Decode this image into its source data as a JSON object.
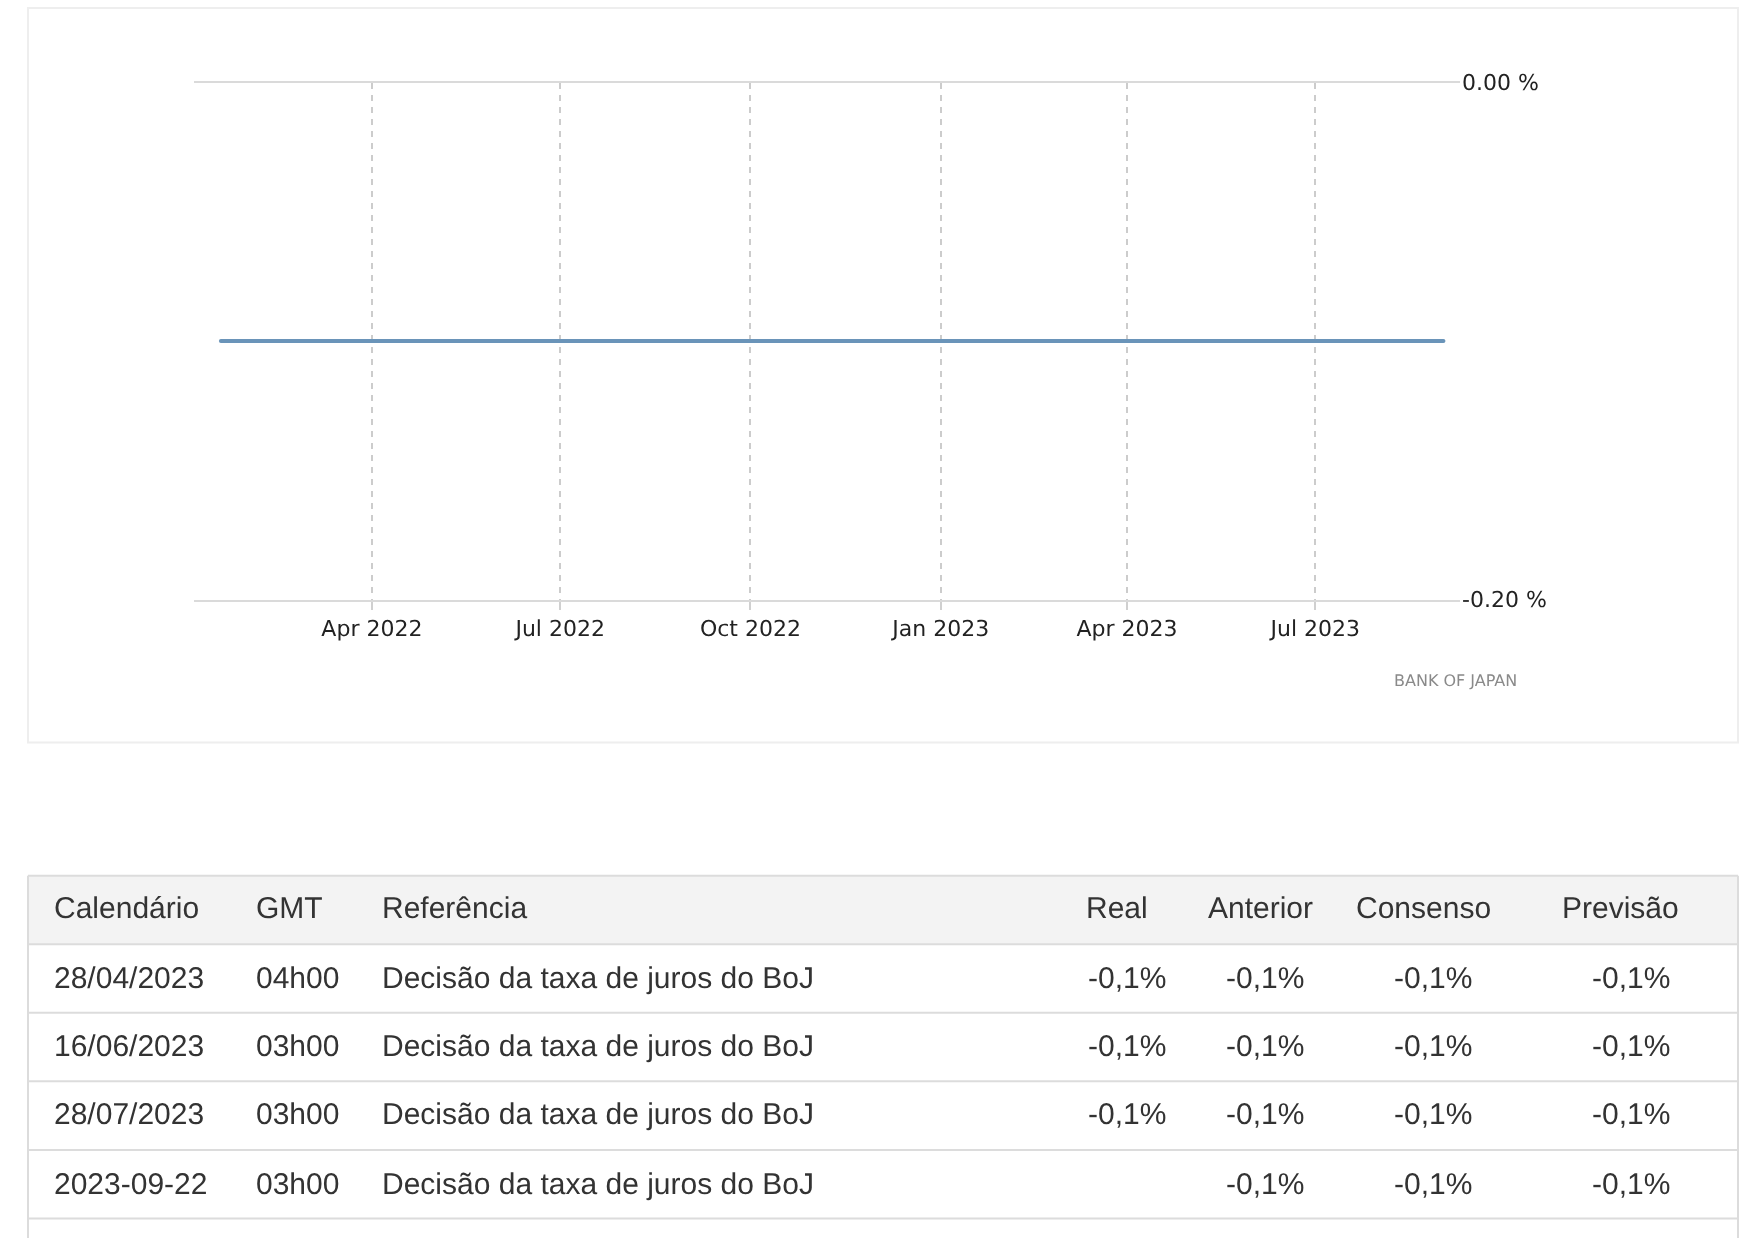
{
  "chart_data": [
    {
      "type": "line",
      "x": [
        "2022-01-18",
        "2023-09-01"
      ],
      "values": [
        -0.1,
        -0.1
      ],
      "color": "#6a94b9",
      "xlim": [
        "2022-01-05",
        "2023-09-09"
      ],
      "xticks": [
        {
          "value": "2022-04-01",
          "label": "Apr 2022"
        },
        {
          "value": "2022-07-01",
          "label": "Jul 2022"
        },
        {
          "value": "2022-10-01",
          "label": "Oct 2022"
        },
        {
          "value": "2023-01-01",
          "label": "Jan 2023"
        },
        {
          "value": "2023-04-01",
          "label": "Apr 2023"
        },
        {
          "value": "2023-07-01",
          "label": "Jul 2023"
        }
      ],
      "ylim": [
        -0.2,
        0
      ],
      "yticks": [
        {
          "value": 0,
          "label": "0.00 %"
        },
        {
          "value": -0.2,
          "label": "-0.20 %"
        }
      ],
      "grid": true,
      "annotations": [
        "BANK OF JAPAN"
      ]
    },
    {
      "type": "other",
      "categories": [
        "Calendário",
        "GMT",
        "Referência",
        "Real",
        "Anterior",
        "Consenso",
        "Previsão"
      ],
      "cell_labels": [
        [
          "28/04/2023",
          "04h00",
          "Decisão da taxa de juros do BoJ",
          "-0,1%",
          "-0,1%",
          "-0,1%",
          "-0,1%"
        ],
        [
          "16/06/2023",
          "03h00",
          "Decisão da taxa de juros do BoJ",
          "-0,1%",
          "-0,1%",
          "-0,1%",
          "-0,1%"
        ],
        [
          "28/07/2023",
          "03h00",
          "Decisão da taxa de juros do BoJ",
          "-0,1%",
          "-0,1%",
          "-0,1%",
          "-0,1%"
        ],
        [
          "2023-09-22",
          "03h00",
          "Decisão da taxa de juros do BoJ",
          null,
          "-0,1%",
          "-0,1%",
          "-0,1%"
        ]
      ]
    }
  ]
}
